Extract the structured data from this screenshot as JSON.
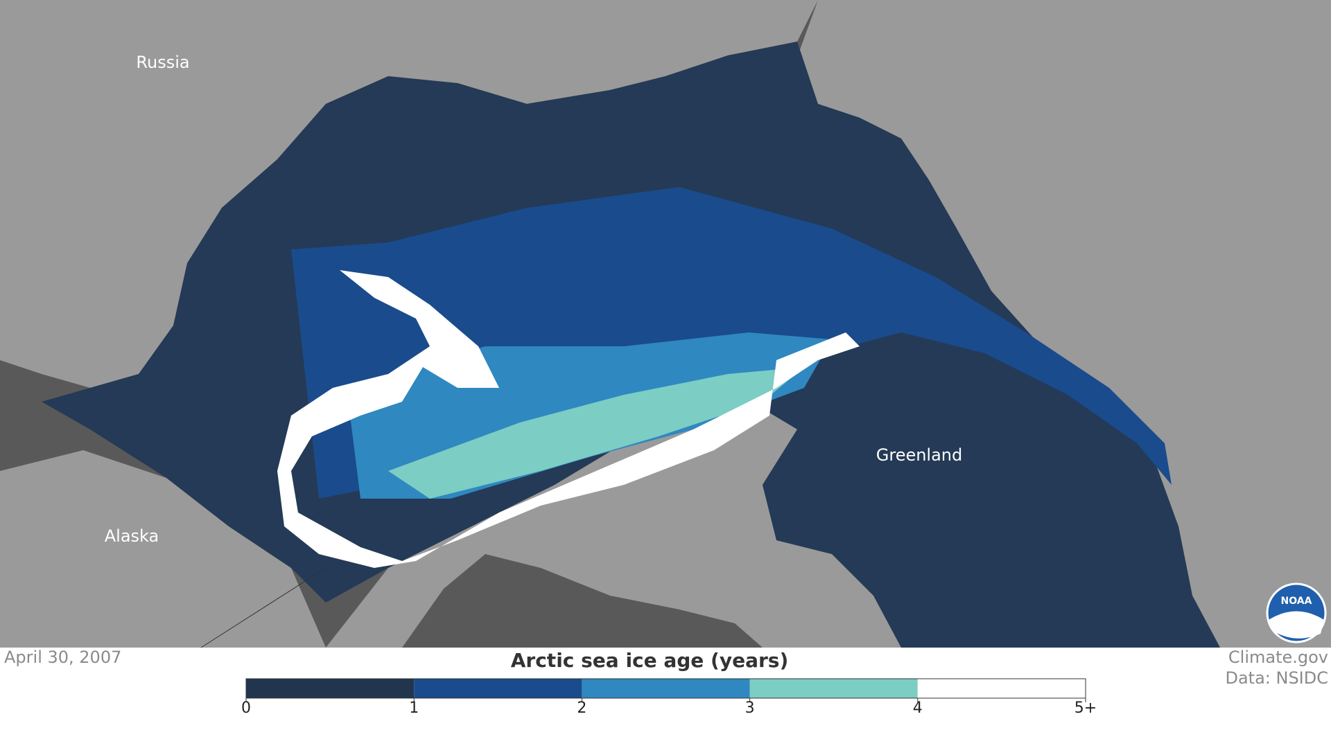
{
  "map": {
    "labels": [
      {
        "text": "Russia"
      },
      {
        "text": "Alaska"
      },
      {
        "text": "Greenland"
      }
    ]
  },
  "date": "April 30, 2007",
  "legend": {
    "title": "Arctic sea ice age (years)",
    "colors": [
      "#22354f",
      "#1a4b8c",
      "#2f88c0",
      "#7ccdc4",
      "#ffffff"
    ],
    "ticks": [
      0,
      1,
      2,
      3,
      4,
      {
        "value": 5,
        "label": "5+"
      }
    ]
  },
  "credits": [
    "Climate.gov",
    "Data: NSIDC"
  ],
  "logo": "NOAA"
}
